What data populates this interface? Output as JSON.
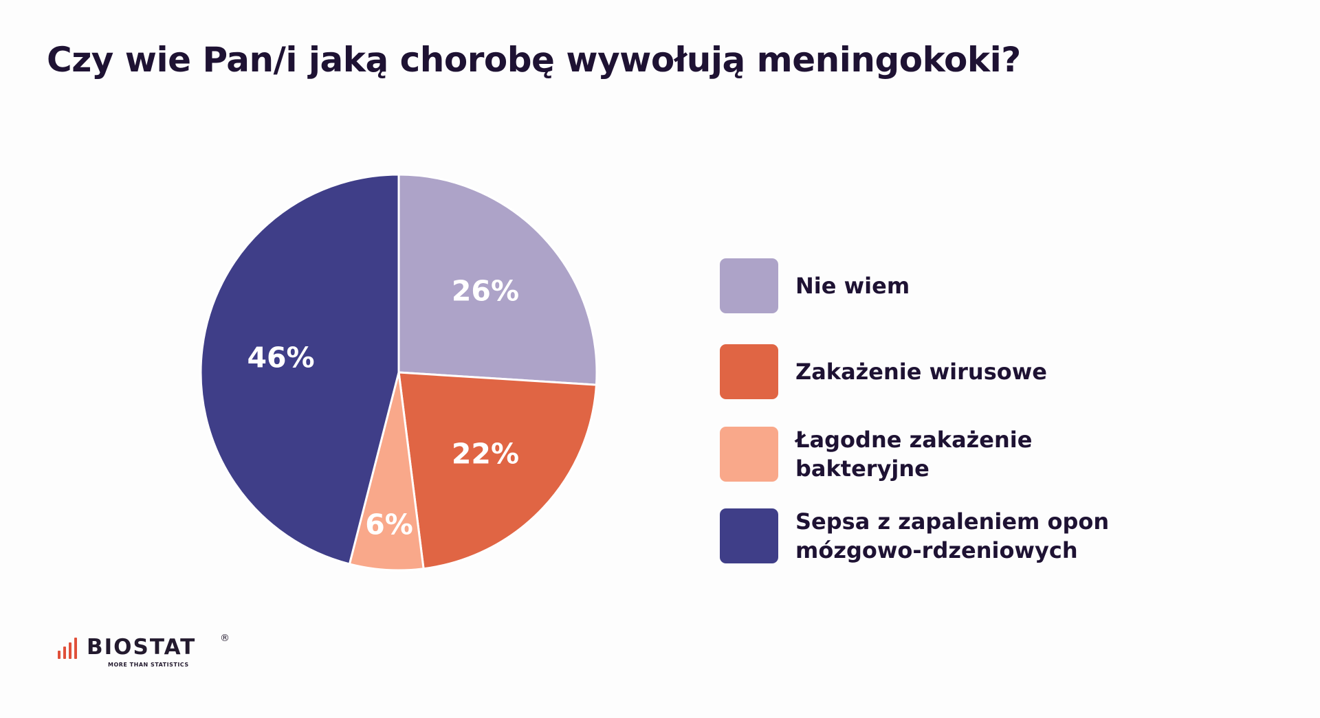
{
  "title": "Czy wie Pan/i jaką chorobę wywołują meningokoki?",
  "chart_data": {
    "type": "pie",
    "title": "Czy wie Pan/i jaką chorobę wywołują meningokoki?",
    "categories": [
      "Nie wiem",
      "Zakażenie wirusowe",
      "Łagodne zakażenie bakteryjne",
      "Sepsa z zapaleniem opon mózgowo-rdzeniowych"
    ],
    "values": [
      26,
      22,
      6,
      46
    ],
    "value_labels": [
      "26%",
      "22%",
      "6%",
      "46%"
    ],
    "colors": [
      "#ada3c8",
      "#e06544",
      "#f9a88a",
      "#3f3e88"
    ],
    "legend_position": "right"
  },
  "legend": {
    "items": [
      {
        "label": "Nie wiem",
        "color": "#ada3c8"
      },
      {
        "label": "Zakażenie wirusowe",
        "color": "#e06544"
      },
      {
        "label": "Łagodne zakażenie bakteryjne",
        "color": "#f9a88a"
      },
      {
        "label": "Sepsa z zapaleniem opon mózgowo-rdzeniowych",
        "color": "#3f3e88"
      }
    ]
  },
  "logo": {
    "name": "BIOSTAT",
    "registered": "®",
    "tagline": "MORE THAN STATISTICS",
    "bar_color": "#e0503a"
  }
}
